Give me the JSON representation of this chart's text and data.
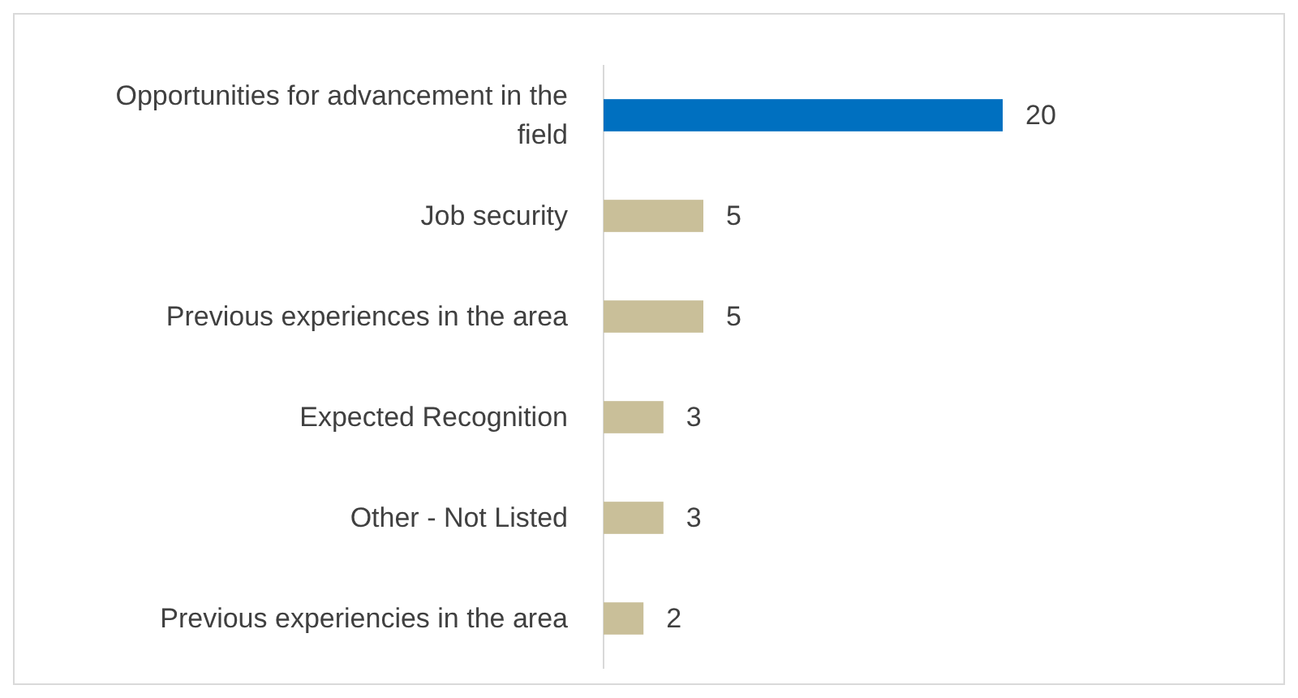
{
  "chart_data": {
    "type": "bar",
    "orientation": "horizontal",
    "categories": [
      "Opportunities for advancement in the field",
      "Job security",
      "Previous experiences in the area",
      "Expected Recognition",
      "Other - Not Listed",
      "Previous experiencies in the area"
    ],
    "values": [
      20,
      5,
      5,
      3,
      3,
      2
    ],
    "colors": [
      "#0070c0",
      "#c9bf99",
      "#c9bf99",
      "#c9bf99",
      "#c9bf99",
      "#c9bf99"
    ],
    "data_labels": true
  }
}
